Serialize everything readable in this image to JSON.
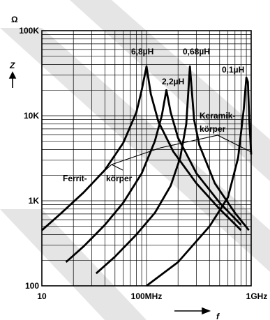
{
  "chart_data": {
    "type": "line",
    "title": "",
    "xlabel": "f",
    "ylabel": "Z",
    "yunit": "Ω",
    "xscale": "log",
    "yscale": "log",
    "xlim": [
      10,
      1000
    ],
    "ylim": [
      100,
      100000
    ],
    "x_tick_labels": [
      "10",
      "100MHz",
      "1GHz"
    ],
    "y_tick_labels": [
      "100",
      "1K",
      "10K",
      "100K"
    ],
    "grid": true,
    "series": [
      {
        "name": "6,8µH",
        "x": [
          10,
          15,
          25,
          40,
          60,
          80,
          90,
          100,
          110,
          130,
          180,
          300,
          500,
          800
        ],
        "y": [
          450,
          700,
          1250,
          2300,
          4800,
          11000,
          20000,
          38000,
          18000,
          8500,
          3800,
          1600,
          800,
          450
        ]
      },
      {
        "name": "2,2µH",
        "x": [
          17,
          25,
          40,
          60,
          90,
          120,
          140,
          155,
          170,
          200,
          300,
          500,
          800
        ],
        "y": [
          190,
          290,
          520,
          950,
          2100,
          5000,
          10000,
          20000,
          11000,
          5500,
          2100,
          950,
          520
        ]
      },
      {
        "name": "0,68µH",
        "x": [
          33,
          50,
          80,
          120,
          170,
          210,
          240,
          260,
          285,
          320,
          450,
          700,
          950
        ],
        "y": [
          140,
          220,
          400,
          720,
          1500,
          3200,
          8000,
          38000,
          9000,
          4500,
          1600,
          720,
          450
        ]
      },
      {
        "name": "0,1µH",
        "x": [
          100,
          200,
          400,
          600,
          750,
          850,
          900,
          930,
          960,
          1000
        ],
        "y": [
          100,
          190,
          500,
          1100,
          3200,
          12000,
          28000,
          25000,
          9000,
          3500
        ]
      }
    ],
    "annotations": [
      "Ferrit-",
      "körper",
      "Keramik-",
      "körper"
    ]
  }
}
